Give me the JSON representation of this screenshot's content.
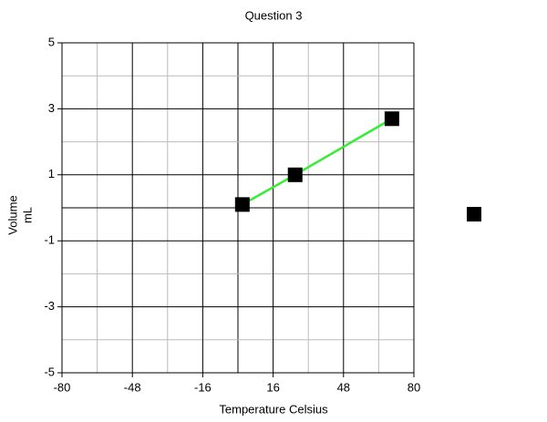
{
  "chart_data": {
    "type": "line",
    "title": "Question 3",
    "x_label": "Temperature Celsius",
    "y_label": [
      "Volume",
      "mL"
    ],
    "x": [
      2,
      26,
      70
    ],
    "series": [
      {
        "values": [
          0.1,
          1,
          2.7
        ],
        "color": "#000000",
        "line_color": "#33ee33"
      }
    ],
    "xlim": [
      -80,
      80
    ],
    "xticks": [
      -80,
      -48,
      -16,
      16,
      48,
      80
    ],
    "xminor": [
      -64,
      -32,
      0,
      32,
      64
    ],
    "ylim": [
      -5,
      5
    ],
    "yticks": [
      -5,
      -3,
      -1,
      1,
      3,
      5
    ],
    "yminor": [
      -4,
      -2,
      0,
      2,
      4
    ],
    "grid": true
  }
}
